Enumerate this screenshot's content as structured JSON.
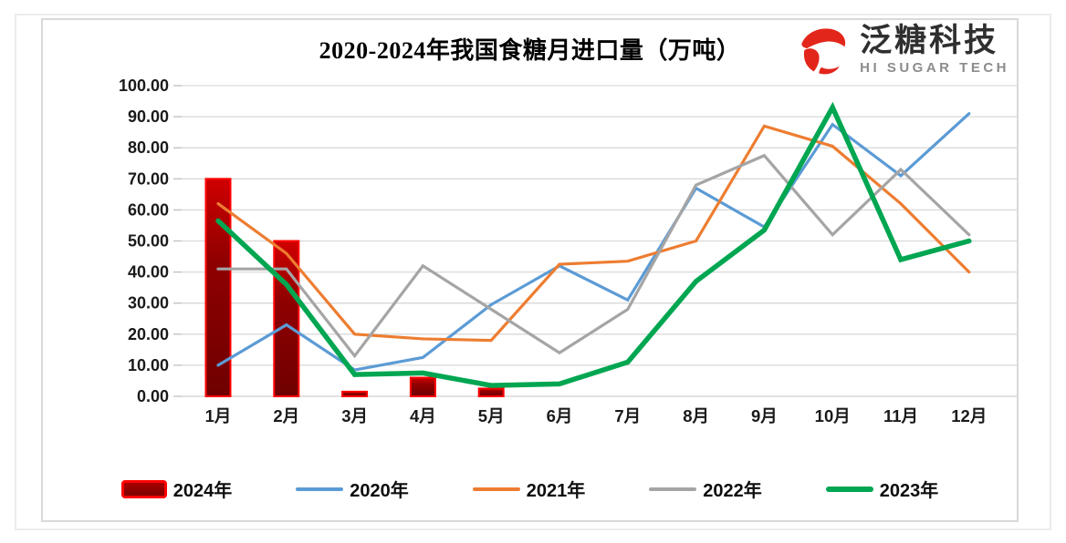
{
  "page": {
    "background": "#ffffff",
    "outer_border_color": "#ececec",
    "inner_border_color": "#d9d9d9"
  },
  "header": {
    "title": "2020-2024年我国食糖月进口量（万吨）",
    "logo": {
      "icon": "red-swirl-logo",
      "icon_color": "#e3261b",
      "name": "泛糖科技",
      "subtitle": "HI SUGAR TECH"
    }
  },
  "chart_data": {
    "type": "combo-bar-line",
    "title": "2020-2024年我国食糖月进口量（万吨）",
    "unit": "万吨",
    "categories": [
      "1月",
      "2月",
      "3月",
      "4月",
      "5月",
      "6月",
      "7月",
      "8月",
      "9月",
      "10月",
      "11月",
      "12月"
    ],
    "y_axis": {
      "min": 0,
      "max": 100,
      "step": 10,
      "tick_labels": [
        "100.00",
        "90.00",
        "80.00",
        "70.00",
        "60.00",
        "50.00",
        "40.00",
        "30.00",
        "20.00",
        "10.00",
        "0.00"
      ]
    },
    "grid": true,
    "gridline_color": "#d9d9d9",
    "axis_label_color": "#1a1a1a",
    "legend_position": "bottom",
    "series": [
      {
        "name": "2024年",
        "type": "bar",
        "color": "#ff0000",
        "fill_gradient": [
          "#d00000",
          "#8f0000",
          "#6f0000"
        ],
        "values": [
          70,
          50,
          1.5,
          6,
          2.5,
          null,
          null,
          null,
          null,
          null,
          null,
          null
        ]
      },
      {
        "name": "2020年",
        "type": "line",
        "color": "#5b9bd5",
        "line_width": 3.2,
        "values": [
          10,
          23,
          8.5,
          12.5,
          29.5,
          42,
          31,
          67,
          54.5,
          87.5,
          71,
          91
        ]
      },
      {
        "name": "2021年",
        "type": "line",
        "color": "#ed7d31",
        "line_width": 3.2,
        "values": [
          62,
          46,
          20,
          18.5,
          18,
          42.5,
          43.5,
          50,
          87,
          80.5,
          62,
          40
        ]
      },
      {
        "name": "2022年",
        "type": "line",
        "color": "#a5a5a5",
        "line_width": 3.2,
        "values": [
          41,
          41,
          13,
          42,
          28,
          14,
          28,
          68,
          77.5,
          52,
          73,
          52
        ]
      },
      {
        "name": "2023年",
        "type": "line",
        "color": "#00a651",
        "line_width": 5.5,
        "values": [
          56.5,
          36,
          7,
          7.5,
          3.5,
          4,
          11,
          37,
          53.5,
          93,
          44,
          50
        ]
      }
    ]
  }
}
